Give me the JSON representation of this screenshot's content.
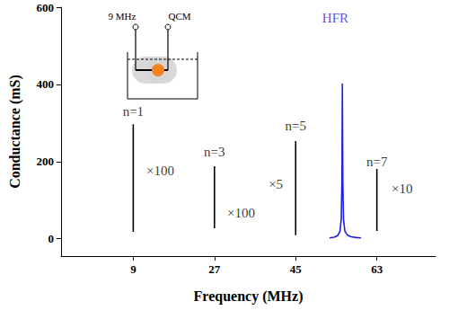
{
  "chart_data": {
    "type": "line",
    "x_label": "Frequency (MHz)",
    "y_label": "Conductance (mS)",
    "xlim": [
      -7,
      76
    ],
    "xticks": [
      9,
      27,
      45,
      63
    ],
    "ylim": [
      -45,
      600
    ],
    "yticks": [
      0,
      200,
      400,
      600
    ],
    "grid": false,
    "series": [
      {
        "x": [
          9,
          9
        ],
        "values": [
          18,
          297
        ],
        "color": "#000000"
      },
      {
        "x": [
          27,
          27
        ],
        "values": [
          27,
          188
        ],
        "color": "#000000"
      },
      {
        "x": [
          45,
          45
        ],
        "values": [
          9,
          253
        ],
        "color": "#000000"
      },
      {
        "x": [
          63,
          63
        ],
        "values": [
          20,
          181
        ],
        "color": "#000000"
      },
      {
        "x": [
          52.5,
          53.5,
          54.3,
          54.8,
          55.1,
          55.25,
          55.35,
          55.45,
          55.6,
          55.9,
          56.5,
          57.3,
          58.5,
          59.5
        ],
        "values": [
          2,
          4,
          8,
          18,
          50,
          150,
          402,
          150,
          50,
          20,
          9,
          5,
          3,
          2
        ],
        "color": "#1f1fe0"
      }
    ],
    "annotations": [
      {
        "text": "n=1",
        "x": 9,
        "y": 330
      },
      {
        "text": "×100",
        "x": 15,
        "y": 176
      },
      {
        "text": "n=3",
        "x": 27,
        "y": 225
      },
      {
        "text": "×100",
        "x": 32.9,
        "y": 67
      },
      {
        "text": "n=5",
        "x": 45,
        "y": 293
      },
      {
        "text": "×5",
        "x": 40.6,
        "y": 141
      },
      {
        "text": "n=7",
        "x": 63,
        "y": 199
      },
      {
        "text": "×10",
        "x": 68.6,
        "y": 130
      },
      {
        "text": "HFR",
        "x": 53.8,
        "y": 572,
        "color": "#1f1fe0"
      }
    ],
    "inset_labels": [
      "9 MHz",
      "QCM"
    ]
  }
}
